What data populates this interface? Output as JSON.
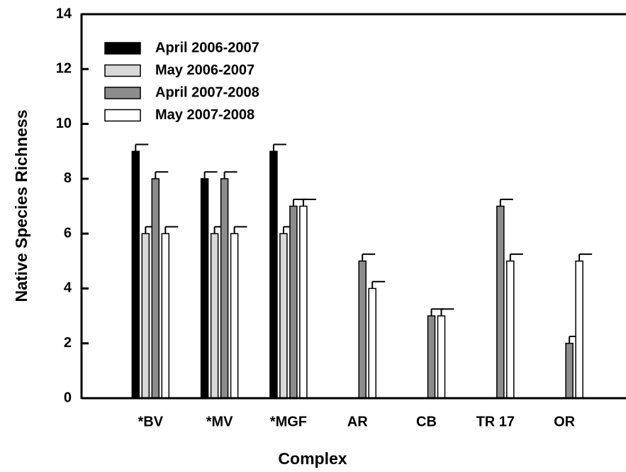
{
  "chart_data": {
    "type": "bar",
    "x_label": "Complex",
    "y_label": "Native Species Richness",
    "categories": [
      "*BV",
      "*MV",
      "*MGF",
      "AR",
      "CB",
      "TR 17",
      "OR"
    ],
    "series": [
      {
        "name": "April 2006-2007",
        "color": "#000000",
        "values": [
          9,
          8,
          9,
          null,
          null,
          null,
          null
        ],
        "errors": [
          0.25,
          0.25,
          0.25,
          null,
          null,
          null,
          null
        ]
      },
      {
        "name": "May 2006-2007",
        "color": "#d9d9d9",
        "values": [
          6,
          6,
          6,
          null,
          null,
          null,
          null
        ],
        "errors": [
          0.25,
          0.25,
          0.25,
          null,
          null,
          null,
          null
        ]
      },
      {
        "name": "April 2007-2008",
        "color": "#8c8c8c",
        "values": [
          8,
          8,
          7,
          5,
          3,
          7,
          2
        ],
        "errors": [
          0.25,
          0.25,
          0.25,
          0.25,
          0.25,
          0.25,
          0.25
        ]
      },
      {
        "name": "May 2007-2008",
        "color": "#ffffff",
        "values": [
          6,
          6,
          7,
          4,
          3,
          5,
          5
        ],
        "errors": [
          0.25,
          0.25,
          0.25,
          0.25,
          0.25,
          0.25,
          0.25
        ]
      }
    ],
    "ylim": [
      0,
      14
    ],
    "yticks": [
      0,
      2,
      4,
      6,
      8,
      10,
      12,
      14
    ],
    "legend": "upper left"
  }
}
